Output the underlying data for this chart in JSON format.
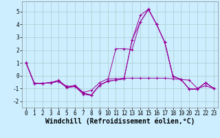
{
  "xlabel": "Windchill (Refroidissement éolien,°C)",
  "x": [
    0,
    1,
    2,
    3,
    4,
    5,
    6,
    7,
    8,
    9,
    10,
    11,
    12,
    13,
    14,
    15,
    16,
    17,
    18,
    19,
    20,
    21,
    22,
    23
  ],
  "series": [
    [
      1.0,
      -0.6,
      -0.6,
      -0.55,
      -0.35,
      -0.9,
      -0.75,
      -1.3,
      -1.15,
      -0.55,
      -0.25,
      -0.25,
      -0.2,
      -0.2,
      -0.2,
      -0.2,
      -0.2,
      -0.2,
      -0.25,
      -0.3,
      -0.35,
      -1.0,
      -0.8,
      -1.0
    ],
    [
      1.0,
      -0.6,
      -0.6,
      -0.55,
      -0.45,
      -0.95,
      -0.85,
      -1.45,
      -1.55,
      -0.75,
      -0.45,
      -0.35,
      -0.25,
      2.8,
      4.7,
      5.2,
      4.0,
      2.6,
      -0.05,
      -0.3,
      -1.05,
      -1.05,
      -0.55,
      -1.0
    ],
    [
      1.0,
      -0.6,
      -0.6,
      -0.55,
      -0.45,
      -0.85,
      -0.82,
      -1.35,
      -1.52,
      -0.75,
      -0.42,
      2.1,
      2.1,
      2.05,
      4.2,
      5.15,
      4.0,
      2.6,
      -0.05,
      -0.3,
      -1.05,
      -1.05,
      -0.55,
      -1.0
    ],
    [
      1.0,
      -0.6,
      -0.6,
      -0.55,
      -0.45,
      -0.85,
      -0.82,
      -1.35,
      -1.52,
      -0.75,
      -0.42,
      -0.35,
      -0.25,
      2.8,
      4.2,
      5.2,
      4.0,
      2.6,
      -0.05,
      -0.3,
      -1.05,
      -1.05,
      -0.55,
      -1.0
    ]
  ],
  "line_color": "#990099",
  "bg_color": "#cceeff",
  "grid_color": "#aacccc",
  "ylim": [
    -2.5,
    5.8
  ],
  "xlim": [
    -0.5,
    23.5
  ],
  "yticks": [
    -2,
    -1,
    0,
    1,
    2,
    3,
    4,
    5
  ],
  "xticks": [
    0,
    1,
    2,
    3,
    4,
    5,
    6,
    7,
    8,
    9,
    10,
    11,
    12,
    13,
    14,
    15,
    16,
    17,
    18,
    19,
    20,
    21,
    22,
    23
  ],
  "tick_fontsize": 5.5,
  "xlabel_fontsize": 7.0,
  "marker": "+"
}
